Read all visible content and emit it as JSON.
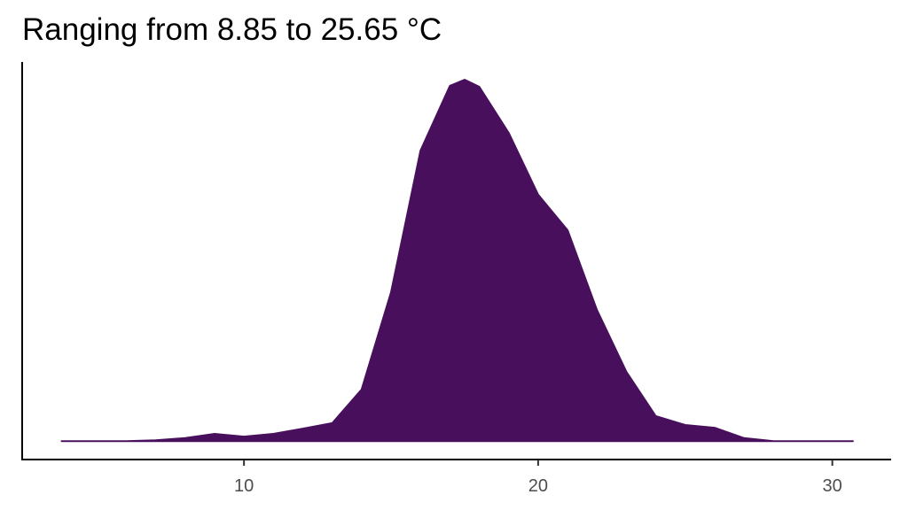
{
  "chart_data": {
    "type": "area",
    "title": "Ranging from 8.85 to 25.65 °C",
    "x": [
      3.8,
      5,
      6,
      7,
      8,
      9,
      10,
      11,
      12,
      13,
      14,
      15,
      16,
      17,
      17.5,
      18,
      19,
      20,
      21,
      22,
      23,
      24,
      25,
      26,
      27,
      28,
      30.7
    ],
    "values": [
      0,
      0,
      0,
      0.0003,
      0.001,
      0.0024,
      0.0015,
      0.0024,
      0.0041,
      0.0059,
      0.0169,
      0.0487,
      0.095,
      0.1162,
      0.1182,
      0.1159,
      0.1008,
      0.0806,
      0.069,
      0.0429,
      0.0227,
      0.0082,
      0.0053,
      0.0044,
      0.001,
      0,
      0
    ],
    "color": "#48105c",
    "xlim": [
      2.46,
      32
    ],
    "xticks": [
      10,
      20,
      30
    ],
    "ylim": [
      -0.006,
      0.124
    ]
  }
}
